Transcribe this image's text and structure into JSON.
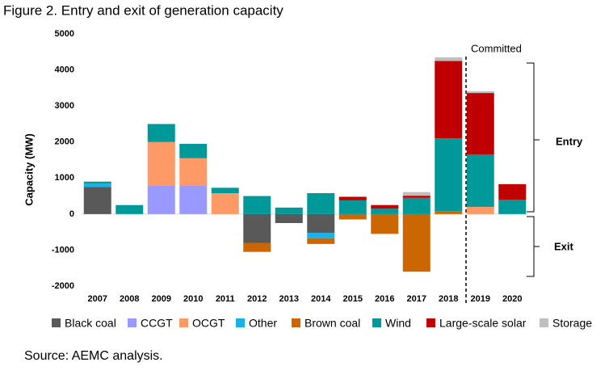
{
  "chart_data": {
    "type": "bar",
    "stacked": true,
    "title": "Figure 2. Entry and exit of generation capacity",
    "y_label": "Capacity (MW)",
    "source": "Source: AEMC analysis.",
    "annotations": {
      "committed": "Committed",
      "entry": "Entry",
      "exit": "Exit"
    },
    "categories": [
      "2007",
      "2008",
      "2009",
      "2010",
      "2011",
      "2012",
      "2013",
      "2014",
      "2015",
      "2016",
      "2017",
      "2018",
      "2019",
      "2020"
    ],
    "series": [
      {
        "name": "Black coal",
        "color": "#595959",
        "values": [
          750,
          0,
          0,
          0,
          0,
          -800,
          -250,
          -520,
          0,
          0,
          0,
          0,
          0,
          0
        ]
      },
      {
        "name": "CCGT",
        "color": "#9999ff",
        "values": [
          0,
          0,
          800,
          800,
          0,
          0,
          0,
          0,
          0,
          0,
          0,
          0,
          0,
          0
        ]
      },
      {
        "name": "OCGT",
        "color": "#ff9966",
        "values": [
          0,
          0,
          1200,
          750,
          580,
          0,
          0,
          0,
          0,
          0,
          0,
          0,
          200,
          0
        ]
      },
      {
        "name": "Other",
        "color": "#1ab0e8",
        "values": [
          100,
          0,
          0,
          0,
          0,
          0,
          0,
          -150,
          0,
          0,
          0,
          0,
          0,
          0
        ]
      },
      {
        "name": "Brown coal",
        "color": "#cc6600",
        "values": [
          0,
          0,
          0,
          0,
          0,
          -250,
          0,
          -160,
          -150,
          -550,
          -1600,
          80,
          0,
          0
        ]
      },
      {
        "name": "Wind",
        "color": "#009999",
        "values": [
          50,
          250,
          500,
          400,
          150,
          500,
          180,
          580,
          380,
          150,
          450,
          2020,
          1450,
          400
        ]
      },
      {
        "name": "Large-scale solar",
        "color": "#c00000",
        "values": [
          0,
          0,
          0,
          0,
          0,
          0,
          0,
          0,
          100,
          100,
          60,
          2150,
          1710,
          430
        ]
      },
      {
        "name": "Storage",
        "color": "#bfbfbf",
        "values": [
          0,
          0,
          0,
          0,
          0,
          0,
          0,
          0,
          0,
          0,
          100,
          100,
          50,
          0
        ]
      }
    ],
    "ylim": [
      -2000,
      5000
    ],
    "yticks": [
      5000,
      4000,
      3000,
      2000,
      1000,
      0,
      -1000,
      -2000
    ]
  }
}
